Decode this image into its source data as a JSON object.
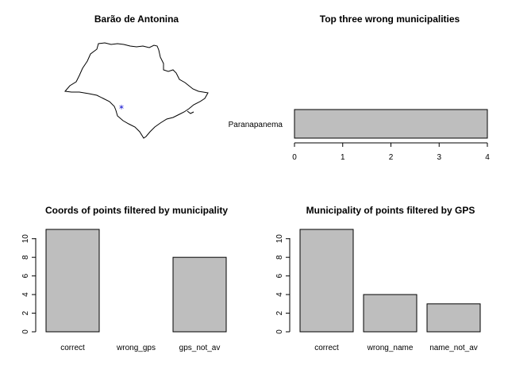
{
  "colors": {
    "bar_fill": "#bebebe",
    "outline": "#000000",
    "marker": "#0000cd"
  },
  "chart_data": [
    {
      "type": "map",
      "title": "Barão de Antonina",
      "region": "São Paulo state outline",
      "marker": "asterisk"
    },
    {
      "type": "bar",
      "orientation": "horizontal",
      "title": "Top three wrong municipalities",
      "categories": [
        "Paranapanema"
      ],
      "values": [
        4
      ],
      "xlim": [
        0,
        4
      ],
      "xticks": [
        "0",
        "1",
        "2",
        "3",
        "4"
      ]
    },
    {
      "type": "bar",
      "title": "Coords of points filtered by municipality",
      "categories": [
        "correct",
        "wrong_gps",
        "gps_not_av"
      ],
      "values": [
        11,
        0,
        8
      ],
      "ylim": [
        0,
        11
      ],
      "yticks": [
        "0",
        "2",
        "4",
        "6",
        "8",
        "10"
      ]
    },
    {
      "type": "bar",
      "title": "Municipality of points filtered by GPS",
      "categories": [
        "correct",
        "wrong_name",
        "name_not_av"
      ],
      "values": [
        11,
        4,
        3
      ],
      "ylim": [
        0,
        11
      ],
      "yticks": [
        "0",
        "2",
        "4",
        "6",
        "8",
        "10"
      ]
    }
  ]
}
